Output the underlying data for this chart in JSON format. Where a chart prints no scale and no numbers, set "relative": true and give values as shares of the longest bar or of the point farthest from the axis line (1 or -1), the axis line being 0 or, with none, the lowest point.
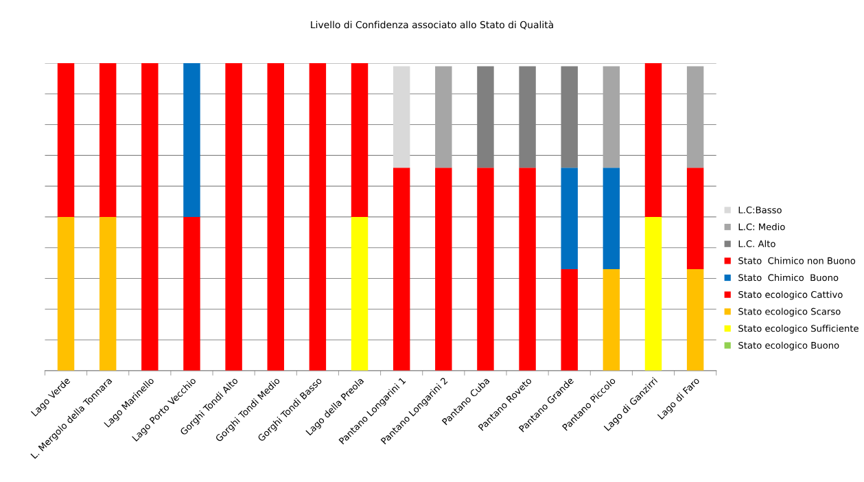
{
  "chart_data": {
    "type": "bar",
    "title": "Livello di Confidenza associato allo Stato di Qualità",
    "stacked": true,
    "relative": true,
    "grid": "y",
    "legend": "right",
    "categories": [
      "Lago Verde",
      "L. Mergolo della Tonnara",
      "Lago Marinello",
      "Lago Porto Vecchio",
      "Gorghi Tondi Alto",
      "Gorghi Tondi Medio",
      "Gorghi Tondi Basso",
      "Lago della Preola",
      "Pantano Longarini 1",
      "Pantano Longarini 2",
      "Pantano Cuba",
      "Pantano Roveto",
      "Pantano Grande",
      "Pantano Piccolo",
      "Lago di Ganzirri",
      "Lago di Faro"
    ],
    "series": [
      {
        "name": "Stato ecologico Buono",
        "color": "#92d050",
        "values": [
          null,
          null,
          null,
          null,
          null,
          null,
          null,
          null,
          null,
          null,
          null,
          null,
          null,
          null,
          null,
          null
        ]
      },
      {
        "name": "Stato ecologico Sufficiente",
        "color": "#ffff00",
        "values": [
          null,
          null,
          null,
          null,
          null,
          null,
          null,
          0.5,
          null,
          null,
          null,
          null,
          null,
          null,
          0.5,
          null
        ]
      },
      {
        "name": "Stato ecologico Scarso",
        "color": "#ffc000",
        "values": [
          0.5,
          0.5,
          null,
          null,
          null,
          null,
          null,
          null,
          null,
          null,
          null,
          null,
          null,
          0.33,
          null,
          0.33
        ]
      },
      {
        "name": "Stato ecologico Cattivo",
        "color": "#ff0000",
        "values": [
          null,
          null,
          0.5,
          0.5,
          0.5,
          0.5,
          0.5,
          null,
          0.33,
          0.33,
          0.33,
          0.33,
          0.33,
          null,
          null,
          null
        ]
      },
      {
        "name": "Stato  Chimico  Buono",
        "color": "#0070c0",
        "values": [
          null,
          null,
          null,
          0.5,
          null,
          null,
          null,
          null,
          null,
          null,
          null,
          null,
          0.33,
          0.33,
          null,
          null
        ]
      },
      {
        "name": "Stato  Chimico non Buono",
        "color": "#ff0000",
        "values": [
          0.5,
          0.5,
          0.5,
          null,
          0.5,
          0.5,
          0.5,
          0.5,
          0.33,
          0.33,
          0.33,
          0.33,
          null,
          null,
          0.5,
          0.33
        ]
      },
      {
        "name": "L.C. Alto",
        "color": "#808080",
        "values": [
          null,
          null,
          null,
          null,
          null,
          null,
          null,
          null,
          null,
          null,
          0.33,
          0.33,
          0.33,
          null,
          null,
          null
        ]
      },
      {
        "name": "L.C: Medio",
        "color": "#a6a6a6",
        "values": [
          null,
          null,
          null,
          null,
          null,
          null,
          null,
          null,
          null,
          0.33,
          null,
          null,
          null,
          0.33,
          null,
          0.33
        ]
      },
      {
        "name": "L.C:Basso",
        "color": "#d9d9d9",
        "values": [
          null,
          null,
          null,
          null,
          null,
          null,
          null,
          null,
          0.33,
          null,
          null,
          null,
          null,
          null,
          null,
          null
        ]
      }
    ]
  }
}
